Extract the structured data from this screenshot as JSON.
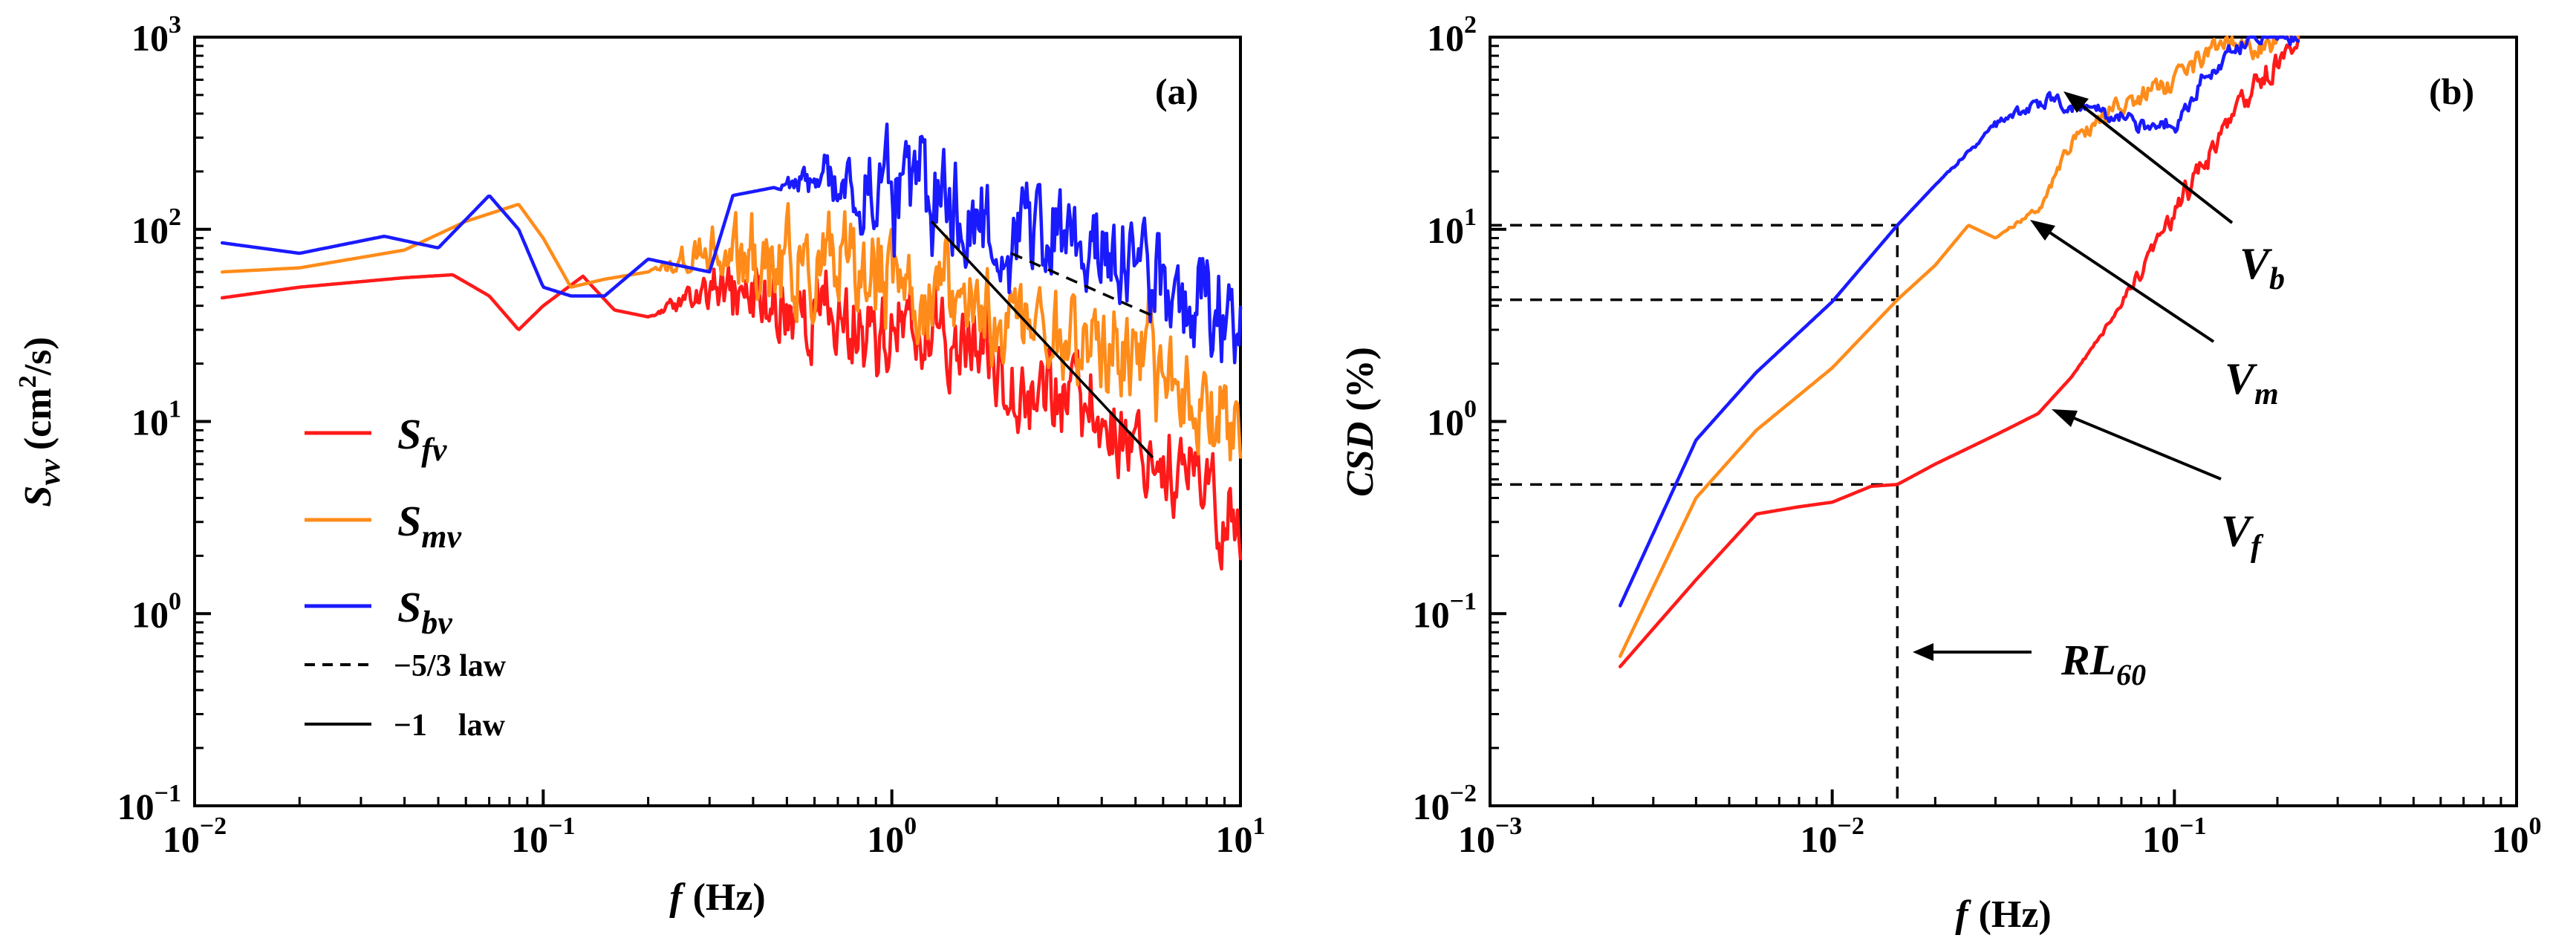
{
  "chart_data": [
    {
      "panel": "(a)",
      "type": "line",
      "xscale": "log",
      "yscale": "log",
      "xlabel_main": "f",
      "xlabel_unit": "(Hz)",
      "ylabel_main": "S",
      "ylabel_sub": "vv",
      "ylabel_unit": "(cm",
      "ylabel_sup": "2",
      "ylabel_tail": "/s)",
      "xlim": [
        0.01,
        10
      ],
      "ylim": [
        0.1,
        1000
      ],
      "grid": false,
      "legend_position": "bottom-left",
      "xticks": [
        {
          "value": 0.01,
          "base": "10",
          "exp": "−2"
        },
        {
          "value": 0.1,
          "base": "10",
          "exp": "−1"
        },
        {
          "value": 1,
          "base": "10",
          "exp": "0"
        },
        {
          "value": 10,
          "base": "10",
          "exp": "1"
        }
      ],
      "yticks": [
        {
          "value": 0.1,
          "base": "10",
          "exp": "−1"
        },
        {
          "value": 1,
          "base": "10",
          "exp": "0"
        },
        {
          "value": 10,
          "base": "10",
          "exp": "1"
        },
        {
          "value": 100,
          "base": "10",
          "exp": "2"
        },
        {
          "value": 1000,
          "base": "10",
          "exp": "3"
        }
      ],
      "series": [
        {
          "key": "fv",
          "label_main": "S",
          "label_sub": "fv",
          "color": "#ff1a1a",
          "noise": 0.18,
          "seed": 11,
          "points": [
            [
              0.012,
              44
            ],
            [
              0.02,
              50
            ],
            [
              0.04,
              56
            ],
            [
              0.055,
              58
            ],
            [
              0.07,
              45
            ],
            [
              0.085,
              30
            ],
            [
              0.1,
              40
            ],
            [
              0.13,
              57
            ],
            [
              0.16,
              38
            ],
            [
              0.2,
              35
            ],
            [
              0.3,
              47
            ],
            [
              0.5,
              40
            ],
            [
              0.8,
              32
            ],
            [
              1.0,
              28
            ],
            [
              1.5,
              27
            ],
            [
              2.0,
              20
            ],
            [
              3.0,
              14
            ],
            [
              5.0,
              8
            ],
            [
              7.0,
              5
            ],
            [
              10.0,
              2.8
            ]
          ]
        },
        {
          "key": "mv",
          "label_main": "S",
          "label_sub": "mv",
          "color": "#ff8c1a",
          "noise": 0.2,
          "seed": 23,
          "points": [
            [
              0.012,
              60
            ],
            [
              0.02,
              63
            ],
            [
              0.04,
              78
            ],
            [
              0.06,
              110
            ],
            [
              0.085,
              135
            ],
            [
              0.1,
              90
            ],
            [
              0.12,
              50
            ],
            [
              0.15,
              55
            ],
            [
              0.2,
              60
            ],
            [
              0.3,
              75
            ],
            [
              0.5,
              60
            ],
            [
              0.8,
              55
            ],
            [
              1.0,
              50
            ],
            [
              1.5,
              45
            ],
            [
              2.0,
              35
            ],
            [
              3.0,
              30
            ],
            [
              5.0,
              22
            ],
            [
              7.0,
              15
            ],
            [
              10.0,
              10
            ]
          ]
        },
        {
          "key": "bv",
          "label_main": "S",
          "label_sub": "bv",
          "color": "#1a1aff",
          "noise": 0.22,
          "seed": 37,
          "points": [
            [
              0.012,
              85
            ],
            [
              0.02,
              75
            ],
            [
              0.035,
              92
            ],
            [
              0.05,
              80
            ],
            [
              0.07,
              150
            ],
            [
              0.085,
              100
            ],
            [
              0.1,
              50
            ],
            [
              0.12,
              45
            ],
            [
              0.15,
              45
            ],
            [
              0.2,
              70
            ],
            [
              0.3,
              60
            ],
            [
              0.35,
              150
            ],
            [
              0.5,
              170
            ],
            [
              0.8,
              170
            ],
            [
              1.0,
              160
            ],
            [
              1.5,
              130
            ],
            [
              2.0,
              100
            ],
            [
              3.0,
              90
            ],
            [
              5.0,
              65
            ],
            [
              7.0,
              45
            ],
            [
              10.0,
              35
            ]
          ]
        }
      ],
      "reference_lines": [
        {
          "key": "minus53",
          "label": "−5/3 law",
          "style": "dashed",
          "points": [
            [
              2.2,
              75
            ],
            [
              5.7,
              35
            ]
          ]
        },
        {
          "key": "minus1",
          "label": "−1    law",
          "style": "solid",
          "points": [
            [
              1.3,
              110
            ],
            [
              5.6,
              6.5
            ]
          ]
        }
      ],
      "annotations": [
        {
          "key": "panel_label",
          "text": "(a)"
        }
      ]
    },
    {
      "panel": "(b)",
      "type": "line",
      "xscale": "log",
      "yscale": "log",
      "xlabel_main": "f",
      "xlabel_unit": "(Hz)",
      "ylabel_main": "CSD",
      "ylabel_unit": "(%)",
      "xlim": [
        0.001,
        1
      ],
      "ylim": [
        0.01,
        100
      ],
      "grid": false,
      "xticks": [
        {
          "value": 0.001,
          "base": "10",
          "exp": "−3"
        },
        {
          "value": 0.01,
          "base": "10",
          "exp": "−2"
        },
        {
          "value": 0.1,
          "base": "10",
          "exp": "−1"
        },
        {
          "value": 1,
          "base": "10",
          "exp": "0"
        }
      ],
      "yticks": [
        {
          "value": 0.01,
          "base": "10",
          "exp": "−2"
        },
        {
          "value": 0.1,
          "base": "10",
          "exp": "−1"
        },
        {
          "value": 1,
          "base": "10",
          "exp": "0"
        },
        {
          "value": 10,
          "base": "10",
          "exp": "1"
        },
        {
          "value": 100,
          "base": "10",
          "exp": "2"
        }
      ],
      "series": [
        {
          "key": "Vf",
          "label_main": "V",
          "label_sub": "f",
          "color": "#ff1a1a",
          "noise": 0.05,
          "seed": 51,
          "points": [
            [
              0.0024,
              0.053
            ],
            [
              0.004,
              0.15
            ],
            [
              0.006,
              0.33
            ],
            [
              0.008,
              0.36
            ],
            [
              0.01,
              0.38
            ],
            [
              0.013,
              0.46
            ],
            [
              0.0155,
              0.47
            ],
            [
              0.02,
              0.6
            ],
            [
              0.03,
              0.85
            ],
            [
              0.04,
              1.1
            ],
            [
              0.05,
              1.7
            ],
            [
              0.07,
              4
            ],
            [
              0.1,
              12
            ],
            [
              0.15,
              40
            ],
            [
              0.2,
              75
            ],
            [
              0.23,
              95
            ]
          ]
        },
        {
          "key": "Vm",
          "label_main": "V",
          "label_sub": "m",
          "color": "#ff8c1a",
          "noise": 0.045,
          "seed": 63,
          "points": [
            [
              0.0024,
              0.06
            ],
            [
              0.004,
              0.4
            ],
            [
              0.006,
              0.9
            ],
            [
              0.01,
              1.9
            ],
            [
              0.0155,
              4.3
            ],
            [
              0.02,
              6.5
            ],
            [
              0.025,
              10.5
            ],
            [
              0.03,
              9
            ],
            [
              0.04,
              13
            ],
            [
              0.05,
              28
            ],
            [
              0.07,
              45
            ],
            [
              0.1,
              60
            ],
            [
              0.12,
              75
            ],
            [
              0.14,
              95
            ],
            [
              0.17,
              82
            ],
            [
              0.2,
              98
            ],
            [
              0.23,
              100
            ]
          ]
        },
        {
          "key": "Vb",
          "label_main": "V",
          "label_sub": "b",
          "color": "#1a1aff",
          "noise": 0.035,
          "seed": 77,
          "points": [
            [
              0.0024,
              0.11
            ],
            [
              0.004,
              0.8
            ],
            [
              0.006,
              1.8
            ],
            [
              0.01,
              4.2
            ],
            [
              0.0155,
              10.5
            ],
            [
              0.02,
              17
            ],
            [
              0.03,
              35
            ],
            [
              0.04,
              45
            ],
            [
              0.05,
              45
            ],
            [
              0.065,
              38
            ],
            [
              0.08,
              34
            ],
            [
              0.1,
              35
            ],
            [
              0.12,
              60
            ],
            [
              0.15,
              90
            ],
            [
              0.2,
              100
            ],
            [
              0.23,
              98
            ]
          ]
        }
      ],
      "guide_lines": {
        "x": 0.0155,
        "y_values": [
          10.5,
          4.3,
          0.47
        ],
        "x_bottom": 0.01
      },
      "annotations": [
        {
          "key": "panel_label",
          "text": "(b)"
        },
        {
          "key": "RL60",
          "text_main": "RL",
          "text_sub": "60"
        }
      ]
    }
  ]
}
